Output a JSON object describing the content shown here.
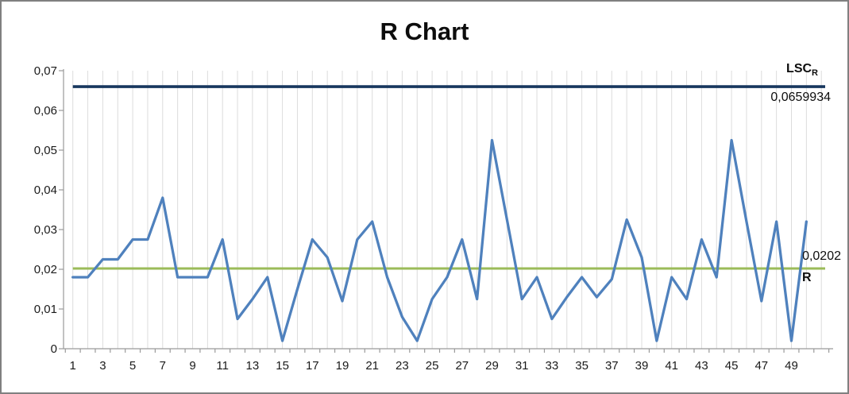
{
  "window": {
    "background": "#ffffff",
    "border_color": "#808080"
  },
  "chart_data": {
    "type": "line",
    "title": "R Chart",
    "xlabel": "",
    "ylabel": "",
    "xlim": [
      0.5,
      51.5
    ],
    "ylim": [
      0,
      0.07
    ],
    "grid": "vertical-only",
    "legend": "none",
    "decimal_separator": ",",
    "x": [
      1,
      2,
      3,
      4,
      5,
      6,
      7,
      8,
      9,
      10,
      11,
      12,
      13,
      14,
      15,
      16,
      17,
      18,
      19,
      20,
      21,
      22,
      23,
      24,
      25,
      26,
      27,
      28,
      29,
      30,
      31,
      32,
      33,
      34,
      35,
      36,
      37,
      38,
      39,
      40,
      41,
      42,
      43,
      44,
      45,
      46,
      47,
      48,
      49,
      50
    ],
    "series": [
      {
        "name": "R",
        "color": "#4F81BD",
        "values": [
          0.018,
          0.018,
          0.0225,
          0.0225,
          0.0275,
          0.0275,
          0.038,
          0.018,
          0.018,
          0.018,
          0.0275,
          0.0075,
          0.0125,
          0.018,
          0.002,
          0.015,
          0.0275,
          0.023,
          0.012,
          0.0275,
          0.032,
          0.018,
          0.008,
          0.002,
          0.0125,
          0.018,
          0.0275,
          0.0125,
          0.0525,
          0.0325,
          0.0125,
          0.018,
          0.0075,
          0.013,
          0.018,
          0.013,
          0.0175,
          0.0325,
          0.023,
          0.002,
          0.018,
          0.0125,
          0.0275,
          0.018,
          0.0525,
          0.032,
          0.012,
          0.032,
          0.002,
          0.032
        ]
      }
    ],
    "control_lines": [
      {
        "name": "LSC_R",
        "label_main": "LSC",
        "label_sub": "R",
        "value": 0.0659934,
        "value_label": "0,0659934",
        "color": "#17375E"
      },
      {
        "name": "R_bar",
        "label_main": "R",
        "value": 0.0202,
        "value_label": "0,0202",
        "color": "#9BBB59"
      }
    ],
    "y_ticks": [
      {
        "label": "0",
        "value": 0
      },
      {
        "label": "0,01",
        "value": 0.01
      },
      {
        "label": "0,02",
        "value": 0.02
      },
      {
        "label": "0,03",
        "value": 0.03
      },
      {
        "label": "0,04",
        "value": 0.04
      },
      {
        "label": "0,05",
        "value": 0.05
      },
      {
        "label": "0,06",
        "value": 0.06
      },
      {
        "label": "0,07",
        "value": 0.07
      }
    ],
    "x_tick_labels": [
      "1",
      "3",
      "5",
      "7",
      "9",
      "11",
      "13",
      "15",
      "17",
      "19",
      "21",
      "23",
      "25",
      "27",
      "29",
      "31",
      "33",
      "35",
      "37",
      "39",
      "41",
      "43",
      "45",
      "47",
      "49"
    ]
  }
}
